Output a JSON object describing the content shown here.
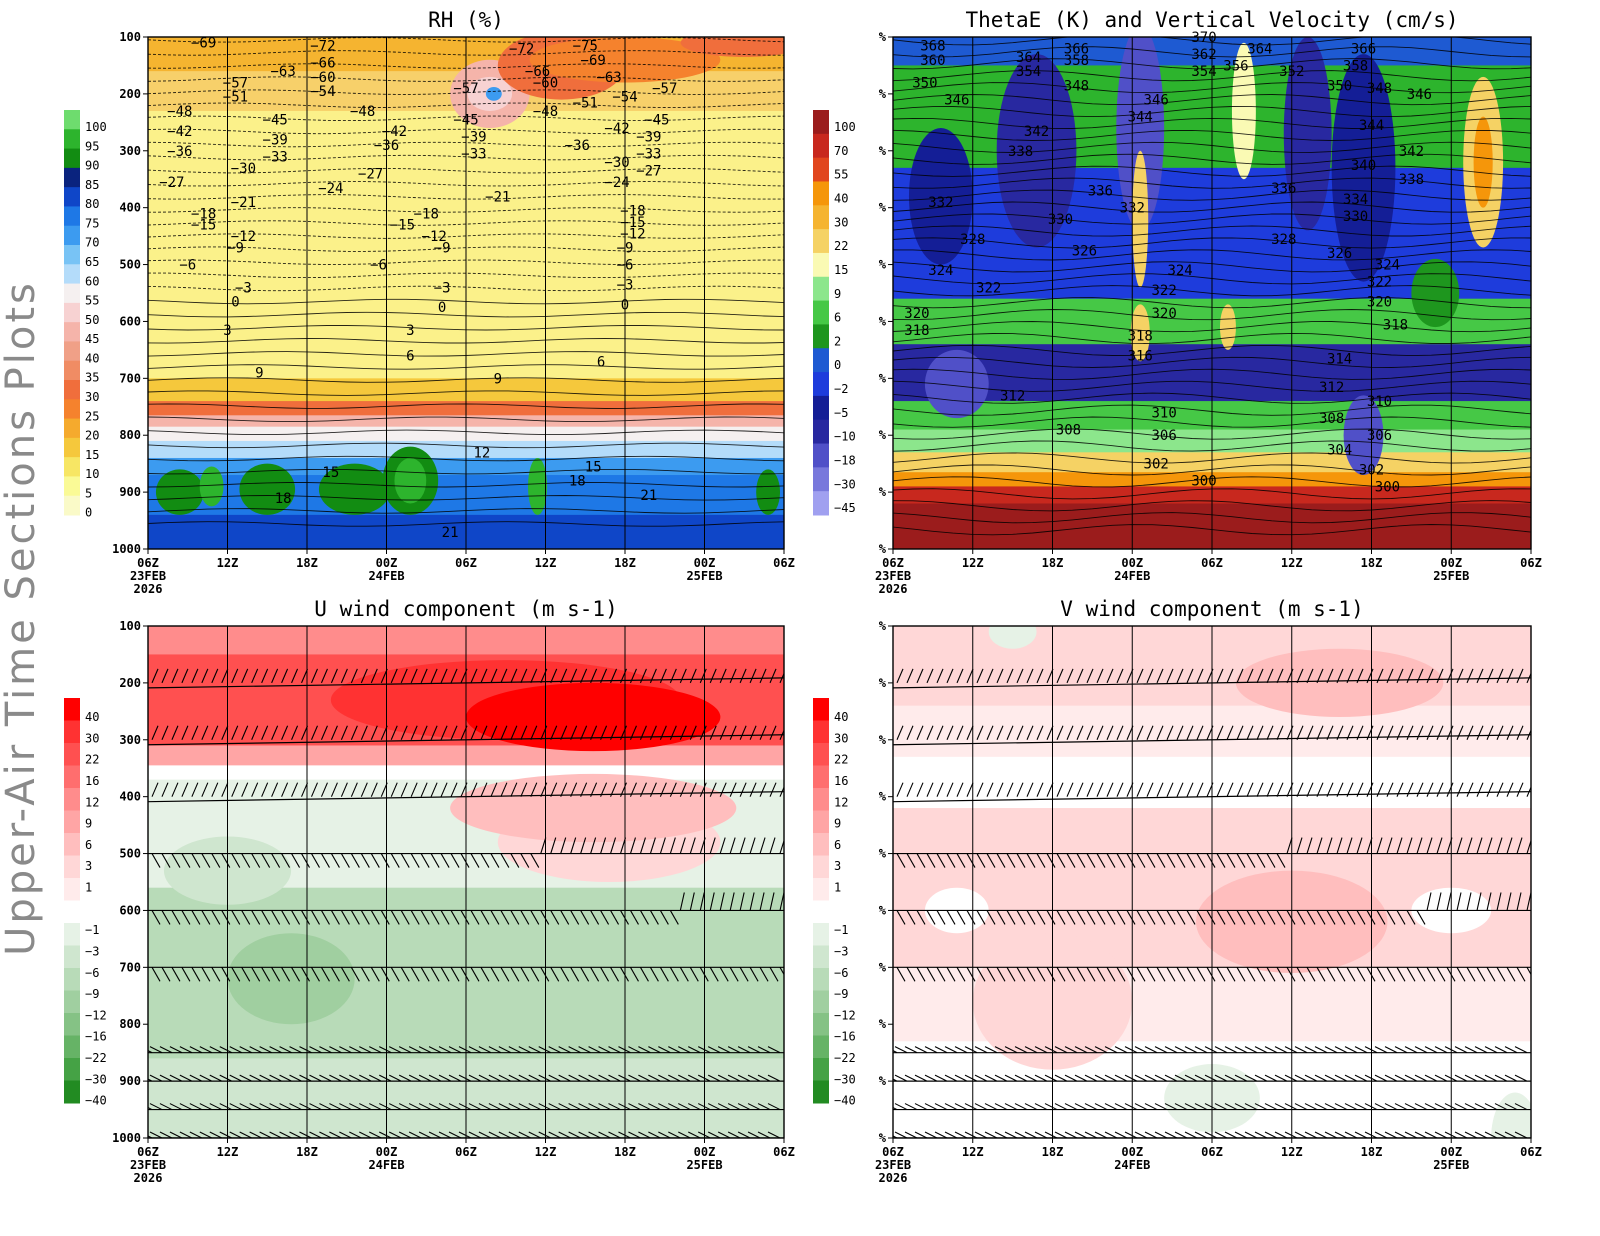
{
  "page_title": "Upper-Air Time Sections Plots",
  "chart_data": [
    {
      "type": "heatmap",
      "name": "rh",
      "title": "RH (%)",
      "y_axis_label": "",
      "y_ticks": [
        "100",
        "200",
        "300",
        "400",
        "500",
        "600",
        "700",
        "800",
        "900",
        "1000"
      ],
      "x_ticks": [
        "06Z",
        "12Z",
        "18Z",
        "00Z",
        "06Z",
        "12Z",
        "18Z",
        "00Z",
        "06Z"
      ],
      "x_date_labels": [
        {
          "tick": 0,
          "lines": [
            "23FEB",
            "2026"
          ]
        },
        {
          "tick": 3,
          "lines": [
            "24FEB"
          ]
        },
        {
          "tick": 7,
          "lines": [
            "25FEB"
          ]
        }
      ],
      "colorbar": {
        "labels": [
          "100",
          "95",
          "90",
          "85",
          "80",
          "75",
          "70",
          "65",
          "60",
          "55",
          "50",
          "45",
          "40",
          "35",
          "30",
          "25",
          "20",
          "15",
          "10",
          "5",
          "0"
        ],
        "colors": [
          "#6edc6e",
          "#2db42d",
          "#128c12",
          "#0a237e",
          "#0f46c8",
          "#1e78e6",
          "#3c9bf0",
          "#78c3f5",
          "#b4dcfa",
          "#f5f0f0",
          "#f7d2d2",
          "#f5b4aa",
          "#f0a087",
          "#f08c64",
          "#f06e3c",
          "#f5822d",
          "#f5aa2d",
          "#f5c83c",
          "#f7e664",
          "#fafa96",
          "#fafac8"
        ]
      },
      "contour_labels": [
        {
          "text": "-69",
          "p": 110,
          "t": 0.7
        },
        {
          "text": "-72",
          "p": 115,
          "t": 2.2
        },
        {
          "text": "-66",
          "p": 145,
          "t": 2.2
        },
        {
          "text": "-63",
          "p": 160,
          "t": 1.7
        },
        {
          "text": "-60",
          "p": 170,
          "t": 2.2
        },
        {
          "text": "-57",
          "p": 180,
          "t": 1.1
        },
        {
          "text": "-54",
          "p": 195,
          "t": 2.2
        },
        {
          "text": "-51",
          "p": 205,
          "t": 1.1
        },
        {
          "text": "-48",
          "p": 230,
          "t": 0.4
        },
        {
          "text": "-48",
          "p": 230,
          "t": 2.7
        },
        {
          "text": "-45",
          "p": 245,
          "t": 1.6
        },
        {
          "text": "-42",
          "p": 265,
          "t": 0.4
        },
        {
          "text": "-42",
          "p": 265,
          "t": 3.1
        },
        {
          "text": "-39",
          "p": 280,
          "t": 1.6
        },
        {
          "text": "-36",
          "p": 300,
          "t": 0.4
        },
        {
          "text": "-36",
          "p": 290,
          "t": 3.0
        },
        {
          "text": "-33",
          "p": 310,
          "t": 1.6
        },
        {
          "text": "-30",
          "p": 330,
          "t": 1.2
        },
        {
          "text": "-27",
          "p": 355,
          "t": 0.3
        },
        {
          "text": "-27",
          "p": 340,
          "t": 2.8
        },
        {
          "text": "-24",
          "p": 365,
          "t": 2.3
        },
        {
          "text": "-21",
          "p": 390,
          "t": 1.2
        },
        {
          "text": "-18",
          "p": 410,
          "t": 0.7
        },
        {
          "text": "-18",
          "p": 410,
          "t": 3.5
        },
        {
          "text": "-15",
          "p": 430,
          "t": 0.7
        },
        {
          "text": "-15",
          "p": 430,
          "t": 3.2
        },
        {
          "text": "-12",
          "p": 450,
          "t": 1.2
        },
        {
          "text": "-12",
          "p": 450,
          "t": 3.6
        },
        {
          "text": "-9",
          "p": 470,
          "t": 1.1
        },
        {
          "text": "-9",
          "p": 470,
          "t": 3.7
        },
        {
          "text": "-6",
          "p": 500,
          "t": 0.5
        },
        {
          "text": "-6",
          "p": 500,
          "t": 2.9
        },
        {
          "text": "-3",
          "p": 540,
          "t": 1.2
        },
        {
          "text": "-3",
          "p": 540,
          "t": 3.7
        },
        {
          "text": "0",
          "p": 565,
          "t": 1.1
        },
        {
          "text": "0",
          "p": 575,
          "t": 3.7
        },
        {
          "text": "3",
          "p": 615,
          "t": 1.0
        },
        {
          "text": "3",
          "p": 615,
          "t": 3.3
        },
        {
          "text": "6",
          "p": 660,
          "t": 3.3
        },
        {
          "text": "9",
          "p": 690,
          "t": 1.4
        },
        {
          "text": "9",
          "p": 700,
          "t": 4.4
        },
        {
          "text": "12",
          "p": 830,
          "t": 4.2
        },
        {
          "text": "15",
          "p": 865,
          "t": 2.3
        },
        {
          "text": "18",
          "p": 910,
          "t": 1.7
        },
        {
          "text": "21",
          "p": 970,
          "t": 3.8
        },
        {
          "text": "-72",
          "p": 120,
          "t": 4.7
        },
        {
          "text": "-75",
          "p": 115,
          "t": 5.5
        },
        {
          "text": "-69",
          "p": 140,
          "t": 5.6
        },
        {
          "text": "-66",
          "p": 160,
          "t": 4.9
        },
        {
          "text": "-63",
          "p": 170,
          "t": 5.8
        },
        {
          "text": "-60",
          "p": 180,
          "t": 5.0
        },
        {
          "text": "-57",
          "p": 190,
          "t": 4.0
        },
        {
          "text": "-57",
          "p": 190,
          "t": 6.5
        },
        {
          "text": "-54",
          "p": 205,
          "t": 6.0
        },
        {
          "text": "-51",
          "p": 215,
          "t": 5.5
        },
        {
          "text": "-48",
          "p": 230,
          "t": 5.0
        },
        {
          "text": "-45",
          "p": 245,
          "t": 4.0
        },
        {
          "text": "-45",
          "p": 245,
          "t": 6.4
        },
        {
          "text": "-42",
          "p": 260,
          "t": 5.9
        },
        {
          "text": "-39",
          "p": 275,
          "t": 4.1
        },
        {
          "text": "-39",
          "p": 275,
          "t": 6.3
        },
        {
          "text": "-36",
          "p": 290,
          "t": 5.4
        },
        {
          "text": "-33",
          "p": 305,
          "t": 4.1
        },
        {
          "text": "-33",
          "p": 305,
          "t": 6.3
        },
        {
          "text": "-30",
          "p": 320,
          "t": 5.9
        },
        {
          "text": "-27",
          "p": 335,
          "t": 6.3
        },
        {
          "text": "-24",
          "p": 355,
          "t": 5.9
        },
        {
          "text": "-21",
          "p": 380,
          "t": 4.4
        },
        {
          "text": "-18",
          "p": 405,
          "t": 6.1
        },
        {
          "text": "-15",
          "p": 425,
          "t": 6.1
        },
        {
          "text": "-12",
          "p": 445,
          "t": 6.1
        },
        {
          "text": "-9",
          "p": 470,
          "t": 6.0
        },
        {
          "text": "-6",
          "p": 500,
          "t": 6.0
        },
        {
          "text": "-3",
          "p": 535,
          "t": 6.0
        },
        {
          "text": "0",
          "p": 570,
          "t": 6.0
        },
        {
          "text": "6",
          "p": 670,
          "t": 5.7
        },
        {
          "text": "15",
          "p": 855,
          "t": 5.6
        },
        {
          "text": "18",
          "p": 880,
          "t": 5.4
        },
        {
          "text": "21",
          "p": 905,
          "t": 6.3
        }
      ]
    },
    {
      "type": "heatmap",
      "name": "thetae",
      "title": "ThetaE (K) and Vertical Velocity (cm/s)",
      "y_ticks": [
        "%",
        "%",
        "%",
        "%",
        "%",
        "%",
        "%",
        "%",
        "%",
        "%"
      ],
      "x_ticks": [
        "06Z",
        "12Z",
        "18Z",
        "00Z",
        "06Z",
        "12Z",
        "18Z",
        "00Z",
        "06Z"
      ],
      "x_date_labels": [
        {
          "tick": 0,
          "lines": [
            "23FEB",
            "2026"
          ]
        },
        {
          "tick": 3,
          "lines": [
            "24FEB"
          ]
        },
        {
          "tick": 7,
          "lines": [
            "25FEB"
          ]
        }
      ],
      "colorbar": {
        "labels": [
          "100",
          "70",
          "55",
          "40",
          "30",
          "22",
          "15",
          "9",
          "6",
          "2",
          "0",
          "-2",
          "-5",
          "-10",
          "-18",
          "-30",
          "-45"
        ],
        "colors": [
          "#9b1c1c",
          "#c8281e",
          "#e1461e",
          "#f5960a",
          "#f5b430",
          "#f5d264",
          "#fafab4",
          "#8ce68c",
          "#46c846",
          "#1e961e",
          "#1e5ad2",
          "#1e3cdc",
          "#141e96",
          "#2828a0",
          "#5050c8",
          "#7878dc",
          "#a0a0f0"
        ]
      },
      "contour_labels": [
        {
          "text": "368",
          "p": 115,
          "t": 0.5
        },
        {
          "text": "360",
          "p": 140,
          "t": 0.5
        },
        {
          "text": "350",
          "p": 180,
          "t": 0.4
        },
        {
          "text": "346",
          "p": 210,
          "t": 0.8
        },
        {
          "text": "364",
          "p": 135,
          "t": 1.7
        },
        {
          "text": "354",
          "p": 160,
          "t": 1.7
        },
        {
          "text": "366",
          "p": 120,
          "t": 2.3
        },
        {
          "text": "358",
          "p": 140,
          "t": 2.3
        },
        {
          "text": "348",
          "p": 185,
          "t": 2.3
        },
        {
          "text": "342",
          "p": 265,
          "t": 1.8
        },
        {
          "text": "338",
          "p": 300,
          "t": 1.6
        },
        {
          "text": "336",
          "p": 370,
          "t": 2.6
        },
        {
          "text": "332",
          "p": 390,
          "t": 0.6
        },
        {
          "text": "330",
          "p": 420,
          "t": 2.1
        },
        {
          "text": "328",
          "p": 455,
          "t": 1.0
        },
        {
          "text": "326",
          "p": 475,
          "t": 2.4
        },
        {
          "text": "324",
          "p": 510,
          "t": 0.6
        },
        {
          "text": "322",
          "p": 540,
          "t": 1.2
        },
        {
          "text": "320",
          "p": 585,
          "t": 0.3
        },
        {
          "text": "318",
          "p": 615,
          "t": 0.3
        },
        {
          "text": "312",
          "p": 730,
          "t": 1.5
        },
        {
          "text": "308",
          "p": 790,
          "t": 2.2
        },
        {
          "text": "370",
          "p": 100,
          "t": 3.9
        },
        {
          "text": "362",
          "p": 130,
          "t": 3.9
        },
        {
          "text": "354",
          "p": 160,
          "t": 3.9
        },
        {
          "text": "364",
          "p": 120,
          "t": 4.6
        },
        {
          "text": "356",
          "p": 150,
          "t": 4.3
        },
        {
          "text": "352",
          "p": 160,
          "t": 5.0
        },
        {
          "text": "350",
          "p": 185,
          "t": 5.6
        },
        {
          "text": "346",
          "p": 210,
          "t": 3.3
        },
        {
          "text": "344",
          "p": 240,
          "t": 3.1
        },
        {
          "text": "332",
          "p": 400,
          "t": 3.0
        },
        {
          "text": "336",
          "p": 365,
          "t": 4.9
        },
        {
          "text": "328",
          "p": 455,
          "t": 4.9
        },
        {
          "text": "324",
          "p": 510,
          "t": 3.6
        },
        {
          "text": "322",
          "p": 545,
          "t": 3.4
        },
        {
          "text": "320",
          "p": 585,
          "t": 3.4
        },
        {
          "text": "318",
          "p": 625,
          "t": 3.1
        },
        {
          "text": "316",
          "p": 660,
          "t": 3.1
        },
        {
          "text": "310",
          "p": 760,
          "t": 3.4
        },
        {
          "text": "306",
          "p": 800,
          "t": 3.4
        },
        {
          "text": "302",
          "p": 850,
          "t": 3.3
        },
        {
          "text": "300",
          "p": 880,
          "t": 3.9
        },
        {
          "text": "366",
          "p": 120,
          "t": 5.9
        },
        {
          "text": "358",
          "p": 150,
          "t": 5.8
        },
        {
          "text": "348",
          "p": 190,
          "t": 6.1
        },
        {
          "text": "346",
          "p": 200,
          "t": 6.6
        },
        {
          "text": "344",
          "p": 255,
          "t": 6.0
        },
        {
          "text": "342",
          "p": 300,
          "t": 6.5
        },
        {
          "text": "340",
          "p": 325,
          "t": 5.9
        },
        {
          "text": "338",
          "p": 350,
          "t": 6.5
        },
        {
          "text": "334",
          "p": 385,
          "t": 5.8
        },
        {
          "text": "330",
          "p": 415,
          "t": 5.8
        },
        {
          "text": "326",
          "p": 480,
          "t": 5.6
        },
        {
          "text": "324",
          "p": 500,
          "t": 6.2
        },
        {
          "text": "322",
          "p": 530,
          "t": 6.1
        },
        {
          "text": "320",
          "p": 565,
          "t": 6.1
        },
        {
          "text": "318",
          "p": 605,
          "t": 6.3
        },
        {
          "text": "314",
          "p": 665,
          "t": 5.6
        },
        {
          "text": "312",
          "p": 715,
          "t": 5.5
        },
        {
          "text": "310",
          "p": 740,
          "t": 6.1
        },
        {
          "text": "308",
          "p": 770,
          "t": 5.5
        },
        {
          "text": "306",
          "p": 800,
          "t": 6.1
        },
        {
          "text": "304",
          "p": 825,
          "t": 5.6
        },
        {
          "text": "302",
          "p": 860,
          "t": 6.0
        },
        {
          "text": "300",
          "p": 890,
          "t": 6.2
        }
      ]
    },
    {
      "type": "heatmap",
      "name": "uwind",
      "title": "U wind component (m s-1)",
      "y_ticks": [
        "100",
        "200",
        "300",
        "400",
        "500",
        "600",
        "700",
        "800",
        "900",
        "1000"
      ],
      "x_ticks": [
        "06Z",
        "12Z",
        "18Z",
        "00Z",
        "06Z",
        "12Z",
        "18Z",
        "00Z",
        "06Z"
      ],
      "x_date_labels": [
        {
          "tick": 0,
          "lines": [
            "23FEB",
            "2026"
          ]
        },
        {
          "tick": 3,
          "lines": [
            "24FEB"
          ]
        },
        {
          "tick": 7,
          "lines": [
            "25FEB"
          ]
        }
      ],
      "colorbar": {
        "labels": [
          "40",
          "30",
          "22",
          "16",
          "12",
          "9",
          "6",
          "3",
          "1",
          "-1",
          "-3",
          "-6",
          "-9",
          "-12",
          "-16",
          "-22",
          "-30",
          "-40"
        ],
        "colors": [
          "#ff0000",
          "#ff3232",
          "#ff5050",
          "#ff6e6e",
          "#ff8c8c",
          "#ffa5a5",
          "#ffbebe",
          "#ffd7d7",
          "#ffebeb",
          "#ffffff",
          "#e6f2e6",
          "#cfe6cf",
          "#b8dbb8",
          "#a0cfa0",
          "#85c285",
          "#66b366",
          "#45a245",
          "#228b22"
        ]
      }
    },
    {
      "type": "heatmap",
      "name": "vwind",
      "title": "V wind component (m s-1)",
      "y_ticks": [
        "%",
        "%",
        "%",
        "%",
        "%",
        "%",
        "%",
        "%",
        "%",
        "%"
      ],
      "x_ticks": [
        "06Z",
        "12Z",
        "18Z",
        "00Z",
        "06Z",
        "12Z",
        "18Z",
        "00Z",
        "06Z"
      ],
      "x_date_labels": [
        {
          "tick": 0,
          "lines": [
            "23FEB",
            "2026"
          ]
        },
        {
          "tick": 3,
          "lines": [
            "24FEB"
          ]
        },
        {
          "tick": 7,
          "lines": [
            "25FEB"
          ]
        }
      ],
      "colorbar": {
        "labels": [
          "40",
          "30",
          "22",
          "16",
          "12",
          "9",
          "6",
          "3",
          "1",
          "-1",
          "-3",
          "-6",
          "-9",
          "-12",
          "-16",
          "-22",
          "-30",
          "-40"
        ],
        "colors": [
          "#ff0000",
          "#ff3232",
          "#ff5050",
          "#ff6e6e",
          "#ff8c8c",
          "#ffa5a5",
          "#ffbebe",
          "#ffd7d7",
          "#ffebeb",
          "#ffffff",
          "#e6f2e6",
          "#cfe6cf",
          "#b8dbb8",
          "#a0cfa0",
          "#85c285",
          "#66b366",
          "#45a245",
          "#228b22"
        ]
      }
    }
  ]
}
